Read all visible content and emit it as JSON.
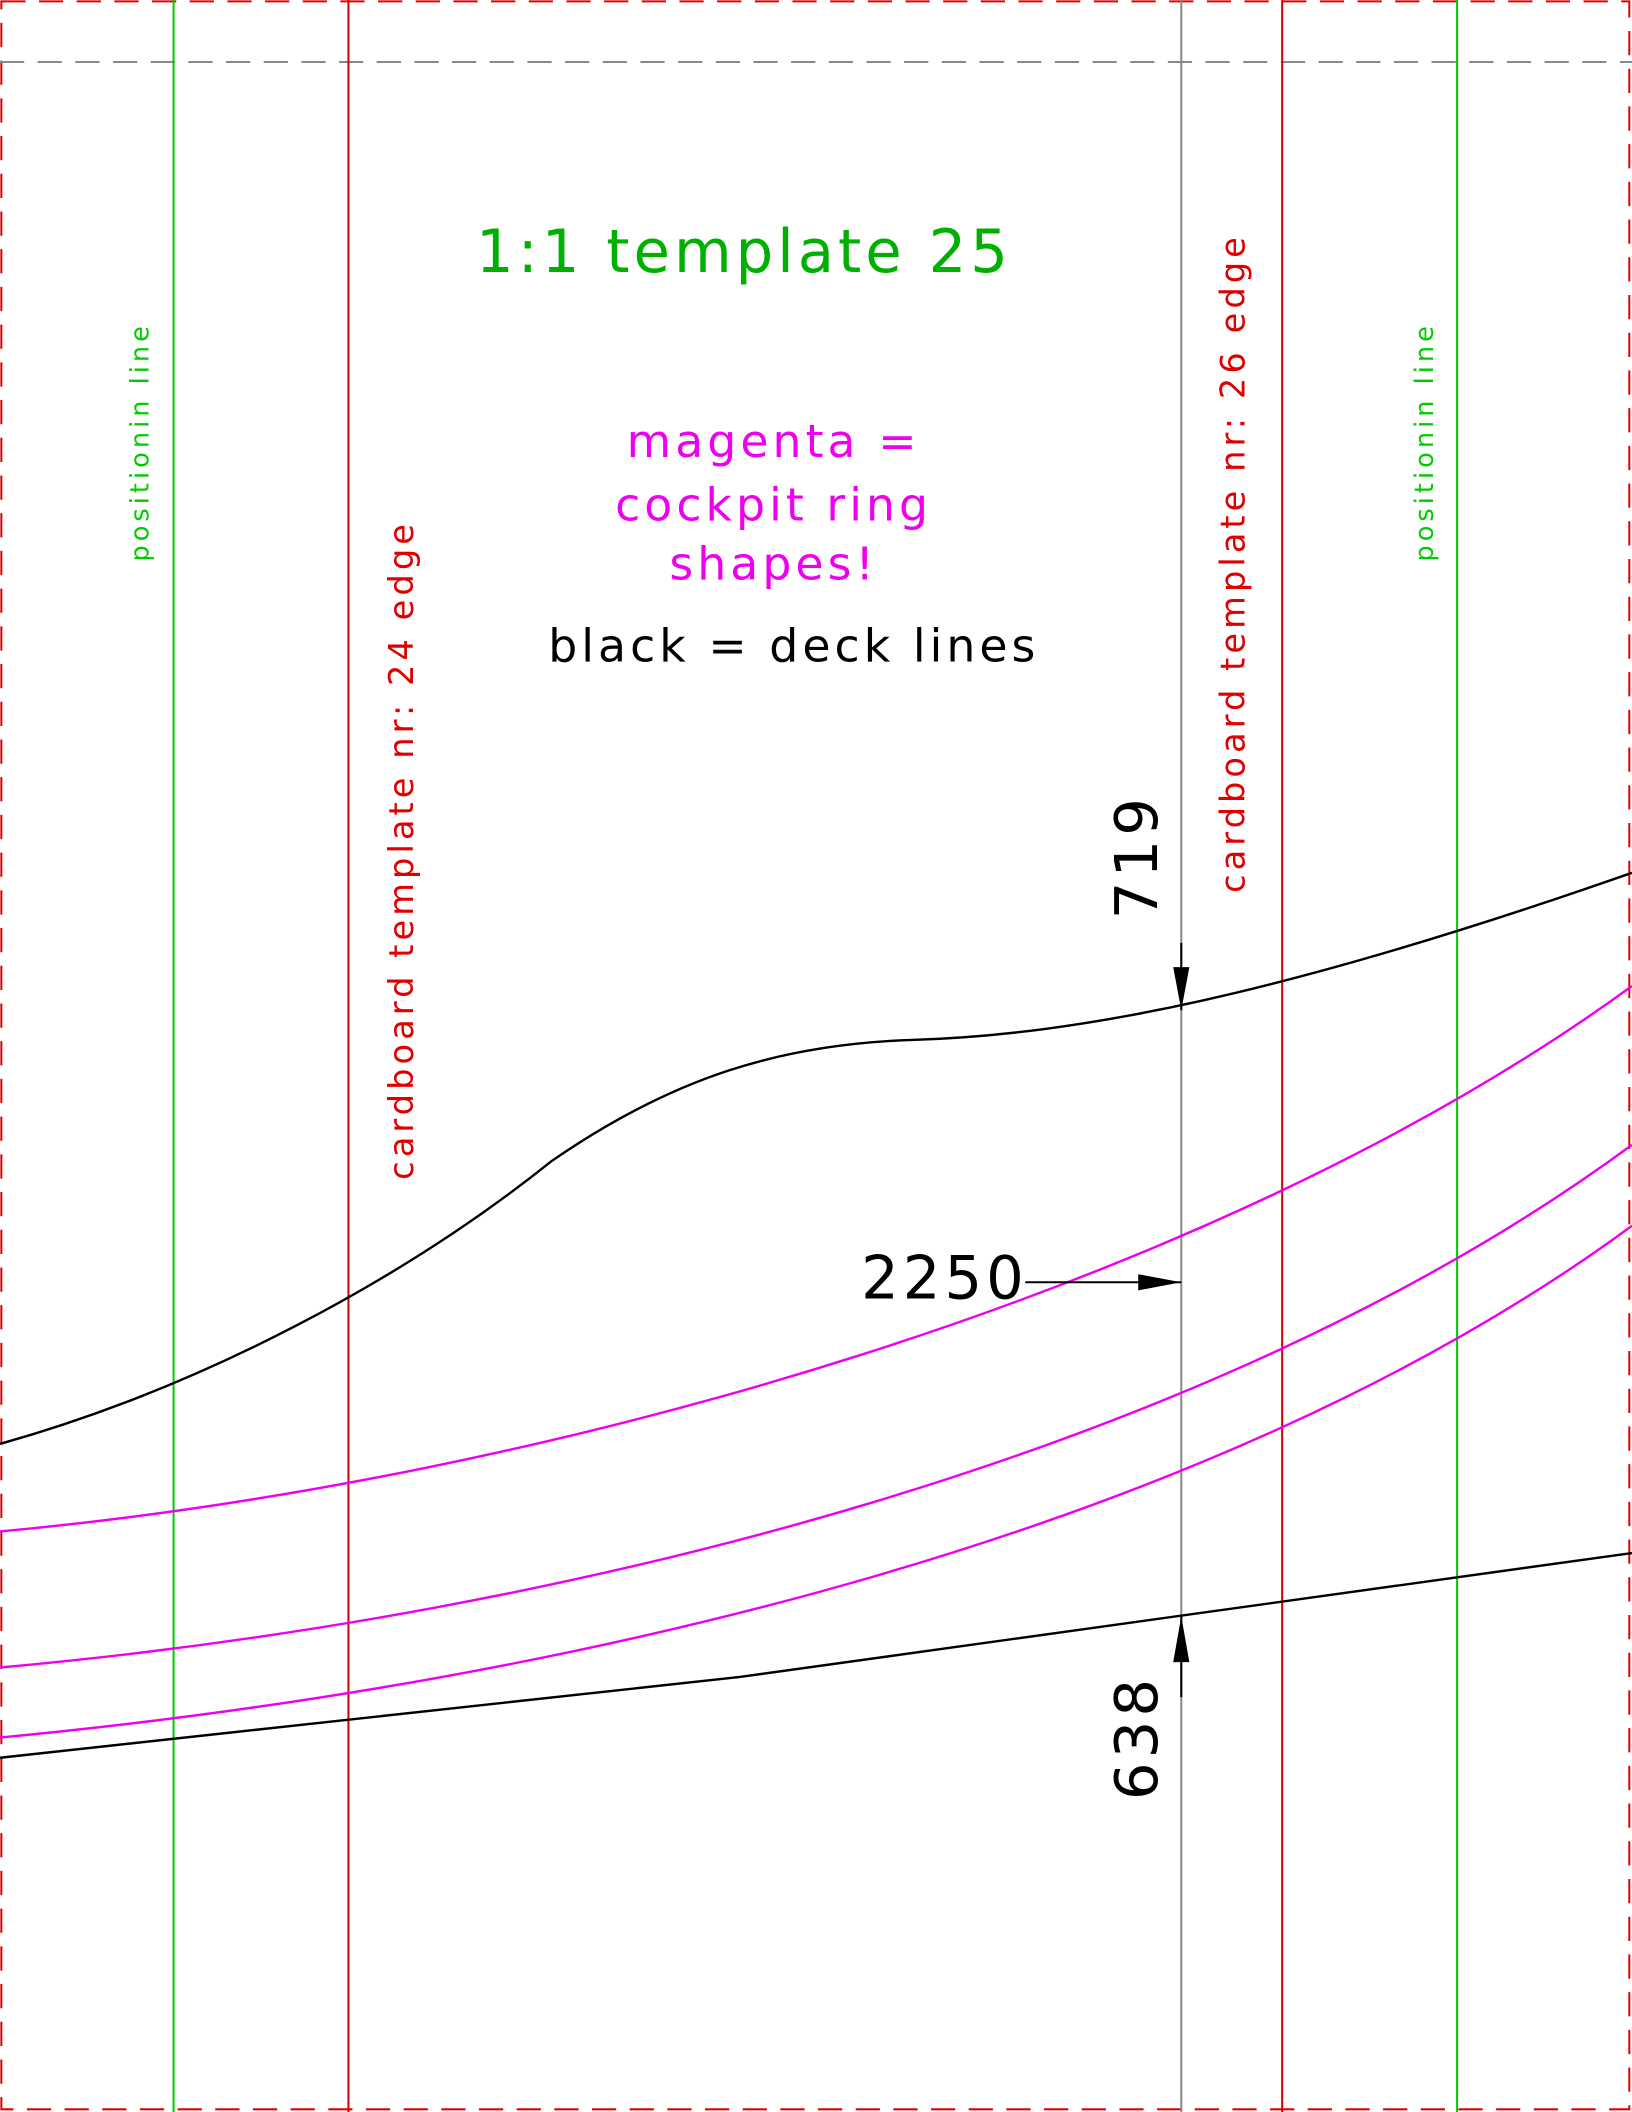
{
  "title": "1:1 template 25",
  "legend": {
    "magenta": [
      "magenta =",
      "cockpit ring",
      "shapes!"
    ],
    "black": "black = deck lines"
  },
  "edges": {
    "left": "cardboard template nr: 24 edge",
    "right": "cardboard template nr: 26 edge"
  },
  "positioning": [
    "positionin line",
    "positionin line"
  ],
  "dimensions": {
    "top": "719",
    "station": "2250",
    "bottom": "638"
  }
}
